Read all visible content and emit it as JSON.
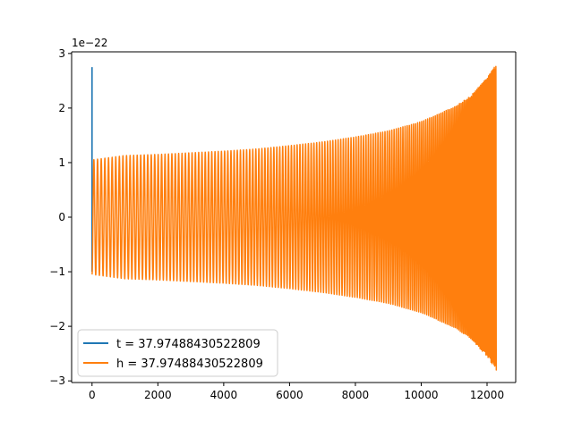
{
  "chart_data": {
    "type": "line",
    "title": "",
    "xlabel": "",
    "ylabel": "",
    "y_scale_offset": "1e−22",
    "xlim": [
      -620,
      12870
    ],
    "ylim": [
      -3.03,
      3.03
    ],
    "x_ticks": [
      0,
      2000,
      4000,
      6000,
      8000,
      10000,
      12000
    ],
    "x_tick_labels": [
      "0",
      "2000",
      "4000",
      "6000",
      "8000",
      "10000",
      "12000"
    ],
    "y_ticks": [
      -3,
      -2,
      -1,
      0,
      1,
      2,
      3
    ],
    "y_tick_labels": [
      "−3",
      "−2",
      "−1",
      "0",
      "1",
      "2",
      "3"
    ],
    "grid": false,
    "legend_position": "lower-left",
    "series": [
      {
        "name": "t = 37.97488430522809",
        "color": "#1f77b4",
        "description": "vertical spike at x=0",
        "x": [
          0,
          0
        ],
        "y": [
          -1.0,
          2.75
        ]
      },
      {
        "name": "h = 37.97488430522809",
        "color": "#ff7f0e",
        "description": "chirp oscillation",
        "x_range": [
          0,
          12280
        ],
        "envelope": [
          [
            0,
            1.05
          ],
          [
            1000,
            1.13
          ],
          [
            2000,
            1.15
          ],
          [
            3000,
            1.18
          ],
          [
            4000,
            1.21
          ],
          [
            5000,
            1.25
          ],
          [
            6000,
            1.31
          ],
          [
            7000,
            1.38
          ],
          [
            8000,
            1.47
          ],
          [
            9000,
            1.58
          ],
          [
            10000,
            1.75
          ],
          [
            11000,
            2.02
          ],
          [
            11500,
            2.22
          ],
          [
            12000,
            2.55
          ],
          [
            12280,
            2.8
          ]
        ],
        "cycles": 165,
        "end_value": -2.75
      }
    ]
  }
}
